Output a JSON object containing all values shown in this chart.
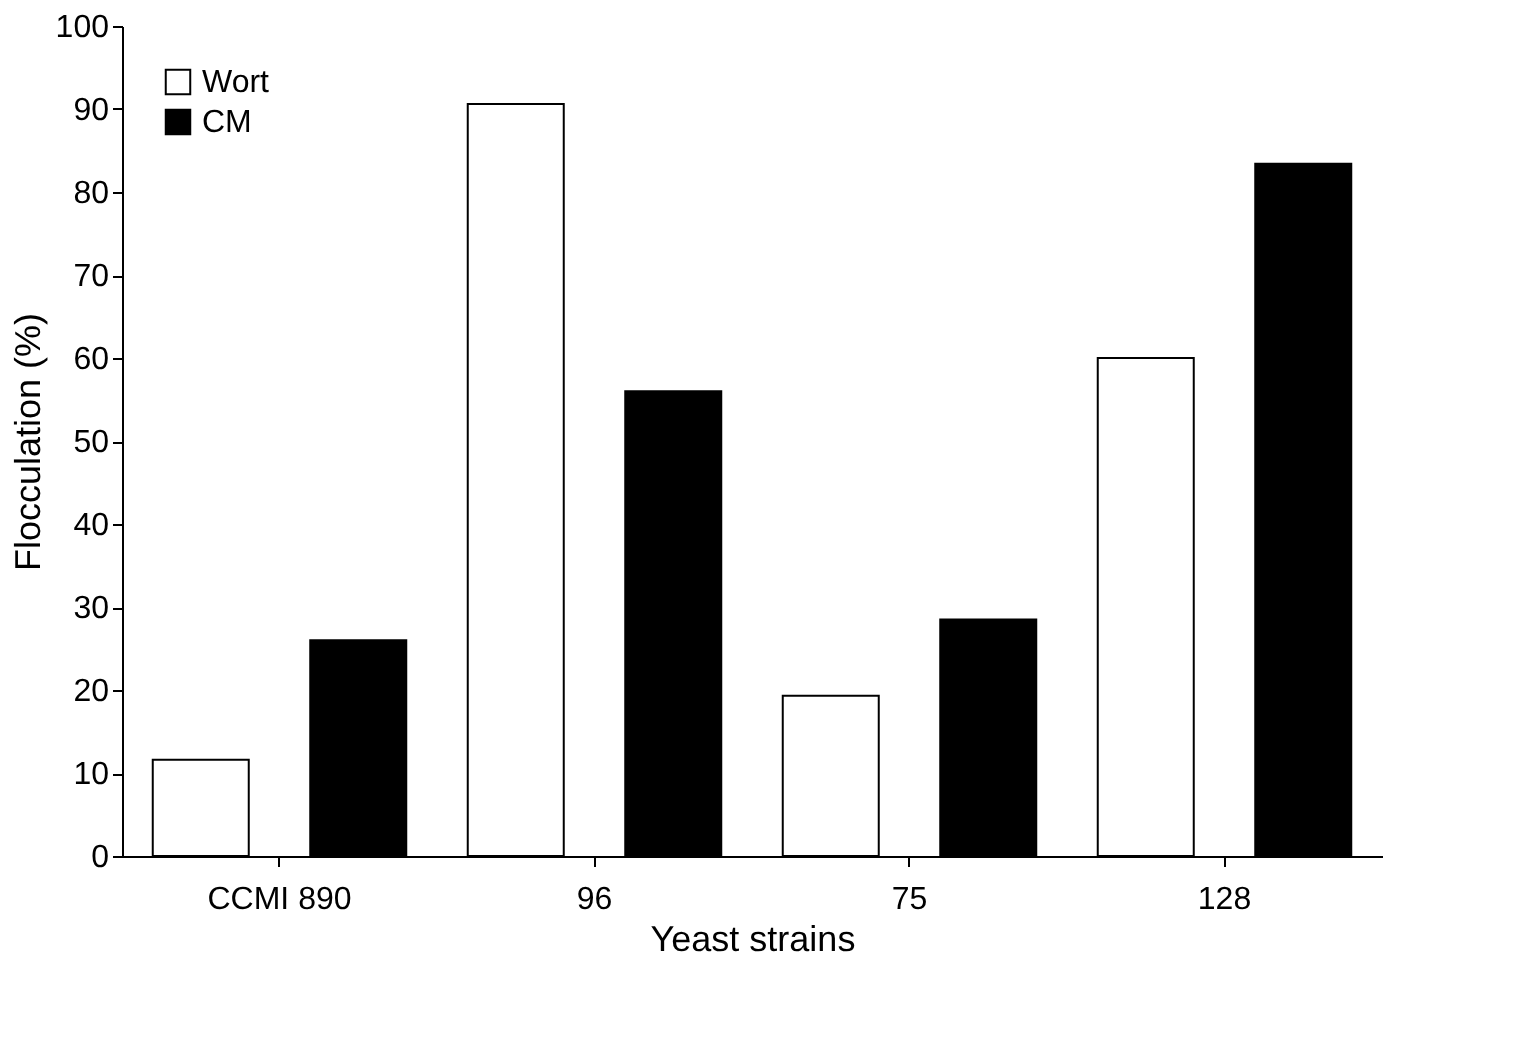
{
  "chart_data": {
    "type": "bar",
    "xlabel": "Yeast strains",
    "ylabel": "Flocculation (%)",
    "categories": [
      "CCMI 890",
      "96",
      "75",
      "128"
    ],
    "series": [
      {
        "name": "Wort",
        "color": "#ffffff",
        "values": [
          11.6,
          90.6,
          19.3,
          60.0
        ]
      },
      {
        "name": "CM",
        "color": "#000000",
        "values": [
          26.0,
          56.0,
          28.5,
          83.4
        ]
      }
    ],
    "ylim": [
      0,
      100
    ],
    "yticks": [
      0,
      10,
      20,
      30,
      40,
      50,
      60,
      70,
      80,
      90,
      100
    ],
    "grid": false,
    "legend": "top left"
  }
}
